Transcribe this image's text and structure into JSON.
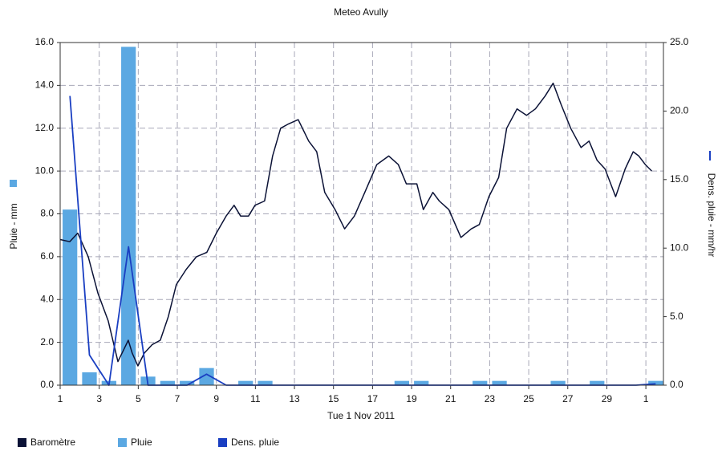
{
  "chart_data": {
    "type": "combo",
    "title": "Meteo Avully",
    "xlabel": "Tue 1 Nov 2011",
    "ylabel": "Pluie - mm",
    "y2label": "Dens. pluie - mm/hr",
    "xlim": [
      1,
      31.9
    ],
    "xticks": [
      1,
      3,
      5,
      7,
      9,
      11,
      13,
      15,
      17,
      19,
      21,
      23,
      25,
      27,
      29,
      {
        "value": 31,
        "label": "1"
      }
    ],
    "ylim": [
      0,
      16
    ],
    "yticks": [
      {
        "value": 0,
        "label": "0.0"
      },
      {
        "value": 2,
        "label": "2.0"
      },
      {
        "value": 4,
        "label": "4.0"
      },
      {
        "value": 6,
        "label": "6.0"
      },
      {
        "value": 8,
        "label": "8.0"
      },
      {
        "value": 10,
        "label": "10.0"
      },
      {
        "value": 12,
        "label": "12.0"
      },
      {
        "value": 14,
        "label": "14.0"
      },
      {
        "value": 16,
        "label": "16.0"
      }
    ],
    "y2lim": [
      0,
      25
    ],
    "y2ticks": [
      {
        "value": 0,
        "label": "0.0"
      },
      {
        "value": 5,
        "label": "5.0"
      },
      {
        "value": 10,
        "label": "10.0"
      },
      {
        "value": 15,
        "label": "15.0"
      },
      {
        "value": 20,
        "label": "20.0"
      },
      {
        "value": 25,
        "label": "25.0"
      }
    ],
    "grid": true,
    "series": [
      {
        "name": "Baromètre",
        "type": "line",
        "color": "#0b1236",
        "x": [
          1.0,
          1.49,
          1.9,
          2.44,
          2.93,
          3.46,
          3.96,
          4.28,
          4.49,
          4.69,
          4.98,
          5.31,
          5.72,
          6.13,
          6.54,
          6.95,
          7.45,
          7.98,
          8.51,
          9.0,
          9.5,
          9.91,
          10.24,
          10.65,
          10.98,
          11.47,
          11.88,
          12.29,
          12.7,
          13.19,
          13.73,
          14.14,
          14.55,
          15.08,
          15.57,
          16.07,
          16.6,
          17.22,
          17.83,
          18.32,
          18.73,
          19.27,
          19.6,
          20.09,
          20.42,
          20.91,
          21.53,
          22.06,
          22.47,
          22.96,
          23.46,
          23.87,
          24.4,
          24.89,
          25.34,
          25.84,
          26.25,
          26.66,
          27.15,
          27.68,
          28.09,
          28.5,
          28.91,
          29.45,
          29.94,
          30.35,
          30.64,
          30.97,
          31.3
        ],
        "values": [
          6.8,
          6.7,
          7.1,
          6.0,
          4.3,
          3.0,
          1.1,
          1.7,
          2.1,
          1.5,
          0.9,
          1.5,
          1.9,
          2.1,
          3.2,
          4.7,
          5.4,
          6.0,
          6.2,
          7.1,
          7.9,
          8.4,
          7.9,
          7.9,
          8.4,
          8.6,
          10.7,
          12.0,
          12.2,
          12.4,
          11.4,
          10.9,
          9.0,
          8.2,
          7.3,
          7.9,
          9.0,
          10.3,
          10.7,
          10.3,
          9.4,
          9.4,
          8.2,
          9.0,
          8.6,
          8.2,
          6.9,
          7.3,
          7.5,
          8.8,
          9.7,
          12.0,
          12.9,
          12.6,
          12.9,
          13.5,
          14.1,
          13.1,
          12.0,
          11.1,
          11.4,
          10.5,
          10.1,
          8.8,
          10.1,
          10.9,
          10.7,
          10.3,
          10.0
        ]
      },
      {
        "name": "Pluie",
        "type": "bar",
        "color": "#5ba8e2",
        "x": [
          1,
          2,
          3,
          4,
          5,
          6,
          7,
          8,
          9,
          10,
          11,
          12,
          13,
          14,
          15,
          16,
          17,
          18,
          19,
          20,
          21,
          22,
          23,
          24,
          25,
          26,
          27,
          28,
          29,
          30,
          31
        ],
        "values": [
          8.2,
          0.6,
          0.2,
          15.8,
          0.4,
          0.2,
          0.2,
          0.8,
          0,
          0.2,
          0.2,
          0,
          0,
          0,
          0,
          0,
          0,
          0.2,
          0.2,
          0,
          0,
          0.2,
          0.2,
          0,
          0,
          0.2,
          0,
          0.2,
          0,
          0,
          0.2
        ]
      },
      {
        "name": "Dens. pluie",
        "type": "line",
        "axis": "y2",
        "color": "#1a3fc2",
        "x": [
          1.5,
          2.5,
          3.5,
          4.5,
          5.5,
          6.5,
          7.5,
          8.5,
          9.5,
          10.5,
          11.5,
          12.5,
          13.5,
          14.5,
          15.5,
          16.5,
          17.5,
          18.5,
          19.5,
          20.5,
          21.5,
          22.5,
          23.5,
          24.5,
          25.5,
          26.5,
          27.5,
          28.5,
          29.5,
          30.5,
          31.5
        ],
        "values": [
          21.1,
          2.2,
          0,
          10.1,
          0,
          0,
          0,
          0.8,
          0,
          0,
          0,
          0,
          0,
          0,
          0,
          0,
          0,
          0,
          0,
          0,
          0,
          0,
          0,
          0,
          0,
          0,
          0,
          0,
          0,
          0,
          0.1
        ]
      }
    ]
  }
}
